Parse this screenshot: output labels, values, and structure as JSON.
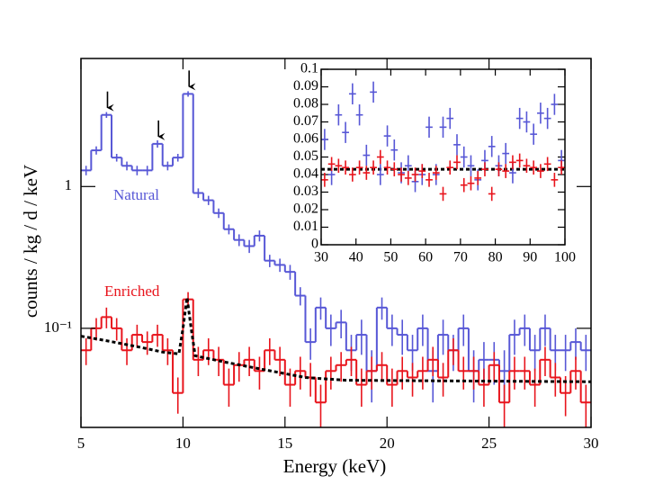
{
  "chart_data": [
    {
      "type": "histogram",
      "xlabel": "Energy (keV)",
      "ylabel": "counts / kg / d / keV",
      "bins": [
        5,
        5.5,
        6,
        6.5,
        7,
        7.5,
        8,
        8.5,
        9,
        9.5,
        10,
        10.5,
        11,
        11.5,
        12,
        12.5,
        13,
        13.5,
        14,
        14.5,
        15,
        15.5,
        16,
        16.5,
        17,
        17.5,
        18,
        18.5,
        19,
        19.5,
        20,
        20.5,
        21,
        21.5,
        22,
        22.5,
        23,
        23.5,
        24,
        24.5,
        25,
        25.5,
        26,
        26.5,
        27,
        27.5,
        28,
        28.5,
        29,
        29.5,
        30
      ],
      "series": [
        {
          "name": "Natural",
          "color": "#5757d6",
          "values": [
            1.3,
            1.8,
            3.2,
            1.6,
            1.4,
            1.3,
            1.3,
            2.0,
            1.4,
            1.6,
            4.5,
            0.9,
            0.8,
            0.65,
            0.5,
            0.42,
            0.38,
            0.45,
            0.3,
            0.28,
            0.25,
            0.17,
            0.08,
            0.14,
            0.1,
            0.11,
            0.07,
            0.09,
            0.05,
            0.14,
            0.1,
            0.09,
            0.07,
            0.1,
            0.05,
            0.09,
            0.07,
            0.1,
            0.05,
            0.06,
            0.06,
            0.05,
            0.09,
            0.1,
            0.07,
            0.1,
            0.07,
            0.07,
            0.08,
            0.07
          ],
          "errors": [
            0.1,
            0.12,
            0.15,
            0.1,
            0.1,
            0.1,
            0.1,
            0.12,
            0.1,
            0.1,
            0.2,
            0.07,
            0.06,
            0.05,
            0.04,
            0.04,
            0.04,
            0.04,
            0.03,
            0.03,
            0.03,
            0.025,
            0.02,
            0.025,
            0.025,
            0.025,
            0.02,
            0.025,
            0.02,
            0.025,
            0.025,
            0.025,
            0.02,
            0.025,
            0.02,
            0.025,
            0.02,
            0.025,
            0.02,
            0.02,
            0.02,
            0.02,
            0.025,
            0.025,
            0.02,
            0.025,
            0.02,
            0.02,
            0.02,
            0.02
          ]
        },
        {
          "name": "Enriched",
          "color": "#e8141c",
          "values": [
            0.07,
            0.1,
            0.12,
            0.1,
            0.07,
            0.09,
            0.08,
            0.09,
            0.07,
            0.035,
            0.16,
            0.06,
            0.07,
            0.06,
            0.04,
            0.055,
            0.06,
            0.05,
            0.07,
            0.06,
            0.04,
            0.05,
            0.045,
            0.03,
            0.05,
            0.055,
            0.06,
            0.04,
            0.05,
            0.055,
            0.04,
            0.05,
            0.045,
            0.05,
            0.06,
            0.045,
            0.07,
            0.05,
            0.05,
            0.04,
            0.055,
            0.03,
            0.05,
            0.05,
            0.04,
            0.06,
            0.045,
            0.035,
            0.05,
            0.03
          ],
          "errors": [
            0.015,
            0.018,
            0.02,
            0.018,
            0.015,
            0.016,
            0.015,
            0.016,
            0.015,
            0.01,
            0.02,
            0.014,
            0.015,
            0.014,
            0.012,
            0.013,
            0.014,
            0.013,
            0.015,
            0.014,
            0.012,
            0.013,
            0.012,
            0.01,
            0.013,
            0.013,
            0.014,
            0.012,
            0.013,
            0.013,
            0.012,
            0.013,
            0.012,
            0.013,
            0.014,
            0.012,
            0.015,
            0.013,
            0.013,
            0.012,
            0.013,
            0.01,
            0.013,
            0.013,
            0.012,
            0.014,
            0.012,
            0.011,
            0.013,
            0.01
          ]
        }
      ],
      "fit": {
        "x": [
          5,
          6,
          7,
          8,
          9,
          9.8,
          10,
          10.2,
          10.4,
          10.6,
          12,
          14,
          16,
          18,
          30
        ],
        "values": [
          0.088,
          0.083,
          0.078,
          0.073,
          0.068,
          0.066,
          0.1,
          0.165,
          0.1,
          0.064,
          0.058,
          0.051,
          0.045,
          0.043,
          0.042
        ]
      },
      "arrows": [
        6.3,
        8.8,
        10.3
      ],
      "xlim": [
        5,
        30
      ],
      "xticks": [
        5,
        10,
        15,
        20,
        25,
        30
      ],
      "ylim": [
        0.02,
        8
      ],
      "log_y": true,
      "yticks": [
        {
          "value": 0.1,
          "label": "10⁻¹"
        },
        1
      ]
    },
    {
      "type": "errorbar",
      "x": [
        31,
        33,
        35,
        37,
        39,
        41,
        43,
        45,
        47,
        49,
        51,
        53,
        55,
        57,
        59,
        61,
        63,
        65,
        67,
        69,
        71,
        73,
        75,
        77,
        79,
        81,
        83,
        85,
        87,
        89,
        91,
        93,
        95,
        97,
        99
      ],
      "xerror": 1,
      "series": [
        {
          "color": "#5757d6",
          "error": 0.006,
          "values": [
            0.06,
            0.04,
            0.074,
            0.064,
            0.086,
            0.074,
            0.051,
            0.087,
            0.04,
            0.062,
            0.054,
            0.041,
            0.045,
            0.036,
            0.04,
            0.067,
            0.04,
            0.067,
            0.072,
            0.057,
            0.05,
            0.045,
            0.037,
            0.048,
            0.056,
            0.045,
            0.052,
            0.041,
            0.072,
            0.07,
            0.063,
            0.075,
            0.072,
            0.08,
            0.048
          ]
        },
        {
          "color": "#e8141c",
          "error": 0.004,
          "values": [
            0.037,
            0.046,
            0.045,
            0.044,
            0.04,
            0.044,
            0.041,
            0.044,
            0.05,
            0.044,
            0.043,
            0.04,
            0.038,
            0.04,
            0.042,
            0.037,
            0.041,
            0.029,
            0.044,
            0.047,
            0.034,
            0.035,
            0.038,
            0.043,
            0.029,
            0.043,
            0.042,
            0.047,
            0.048,
            0.045,
            0.044,
            0.042,
            0.046,
            0.037,
            0.044
          ]
        }
      ],
      "fit": {
        "x": [
          30,
          100
        ],
        "values": [
          0.043,
          0.043
        ]
      },
      "xlim": [
        30,
        100
      ],
      "xticks": [
        30,
        40,
        50,
        60,
        70,
        80,
        90,
        100
      ],
      "ylim": [
        0,
        0.1
      ],
      "yticks": [
        0,
        0.01,
        0.02,
        0.03,
        0.04,
        0.05,
        0.06,
        0.07,
        0.08,
        0.09,
        0.1
      ]
    }
  ]
}
